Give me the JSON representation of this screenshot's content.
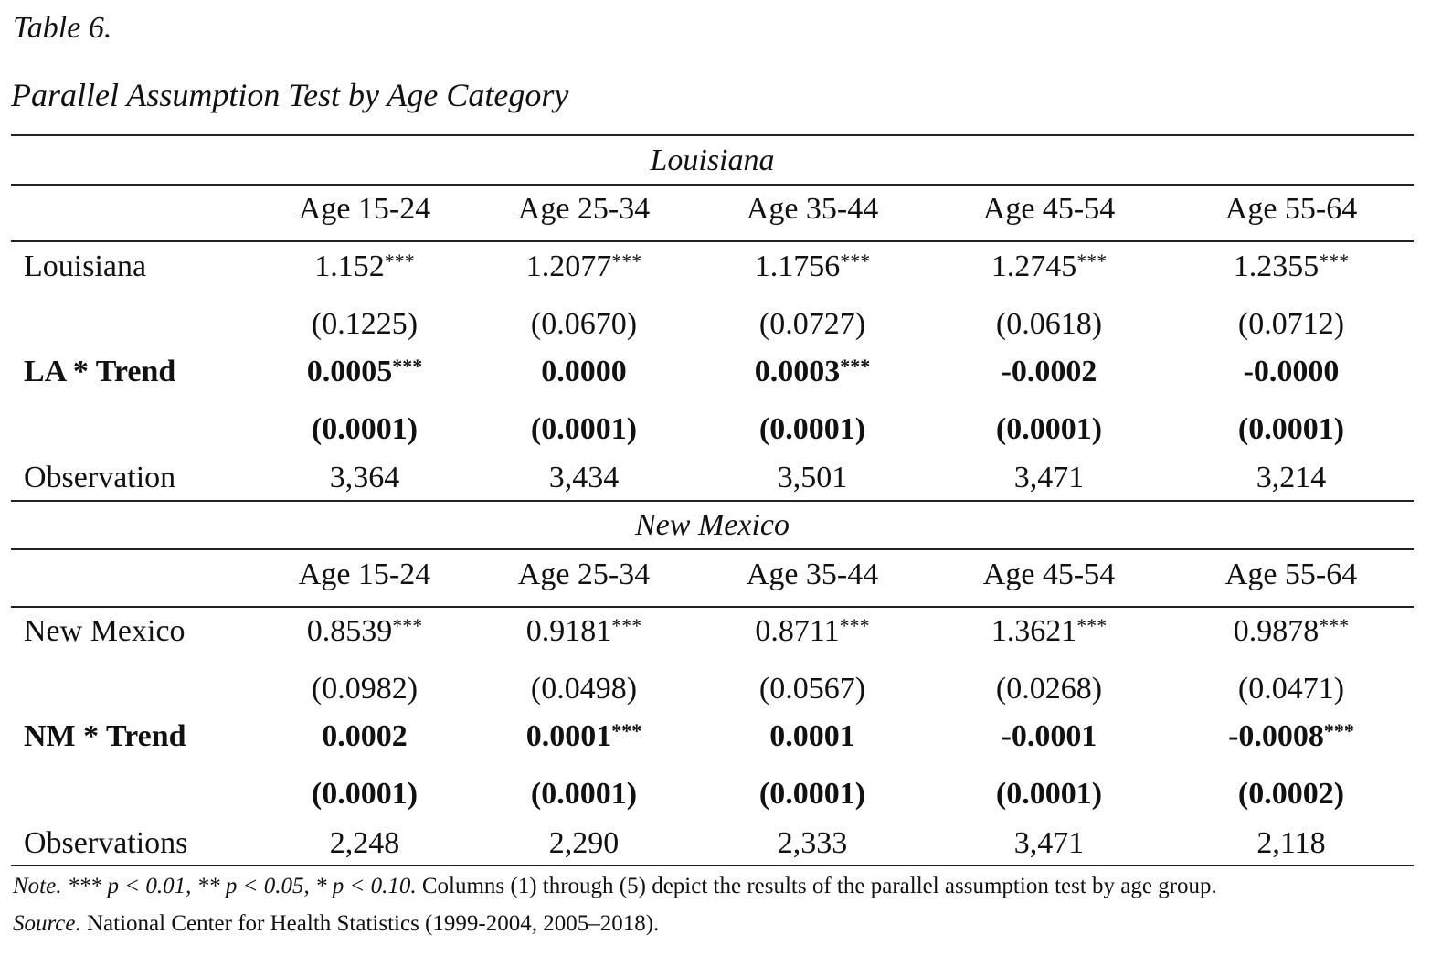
{
  "table_number": "Table 6.",
  "table_title": "Parallel Assumption Test by Age Category",
  "sections": [
    {
      "title": "Louisiana",
      "columns": [
        "Age 15-24",
        "Age 25-34",
        "Age 35-44",
        "Age 45-54",
        "Age 55-64"
      ],
      "rows": [
        {
          "label": "Louisiana",
          "bold": false,
          "values": [
            "1.152",
            "1.2077",
            "1.1756",
            "1.2745",
            "1.2355"
          ],
          "stars": [
            "***",
            "***",
            "***",
            "***",
            "***"
          ]
        },
        {
          "label": "",
          "bold": false,
          "values": [
            "(0.1225)",
            "(0.0670)",
            "(0.0727)",
            "(0.0618)",
            "(0.0712)"
          ],
          "stars": [
            "",
            "",
            "",
            "",
            ""
          ]
        },
        {
          "label": "LA * Trend",
          "bold": true,
          "values": [
            "0.0005",
            "0.0000",
            "0.0003",
            "-0.0002",
            "-0.0000"
          ],
          "stars": [
            "***",
            "",
            "***",
            "",
            ""
          ]
        },
        {
          "label": "",
          "bold": true,
          "values": [
            "(0.0001)",
            "(0.0001)",
            "(0.0001)",
            "(0.0001)",
            "(0.0001)"
          ],
          "stars": [
            "",
            "",
            "",
            "",
            ""
          ]
        },
        {
          "label": "Observation",
          "bold": false,
          "values": [
            "3,364",
            "3,434",
            "3,501",
            "3,471",
            "3,214"
          ],
          "stars": [
            "",
            "",
            "",
            "",
            ""
          ]
        }
      ]
    },
    {
      "title": "New Mexico",
      "columns": [
        "Age 15-24",
        "Age 25-34",
        "Age 35-44",
        "Age 45-54",
        "Age 55-64"
      ],
      "rows": [
        {
          "label": "New Mexico",
          "bold": false,
          "values": [
            "0.8539",
            "0.9181",
            "0.8711",
            "1.3621",
            "0.9878"
          ],
          "stars": [
            "***",
            "***",
            "***",
            "***",
            "***"
          ]
        },
        {
          "label": "",
          "bold": false,
          "values": [
            "(0.0982)",
            "(0.0498)",
            "(0.0567)",
            "(0.0268)",
            "(0.0471)"
          ],
          "stars": [
            "",
            "",
            "",
            "",
            ""
          ]
        },
        {
          "label": "NM * Trend",
          "bold": true,
          "values": [
            "0.0002",
            "0.0001",
            "0.0001",
            "-0.0001",
            "-0.0008"
          ],
          "stars": [
            "",
            "***",
            "",
            "",
            "***"
          ]
        },
        {
          "label": "",
          "bold": true,
          "values": [
            "(0.0001)",
            "(0.0001)",
            "(0.0001)",
            "(0.0001)",
            "(0.0002)"
          ],
          "stars": [
            "",
            "",
            "",
            "",
            ""
          ]
        },
        {
          "label": "Observations",
          "bold": false,
          "values": [
            "2,248",
            "2,290",
            "2,333",
            "3,471",
            "2,118"
          ],
          "stars": [
            "",
            "",
            "",
            "",
            ""
          ]
        }
      ]
    }
  ],
  "note": {
    "label": "Note.",
    "significance": "*** p < 0.01, ** p < 0.05, * p < 0.10.",
    "text": "Columns (1) through (5) depict the results of the parallel assumption test by age group."
  },
  "source": {
    "label": "Source.",
    "text": "National Center for Health Statistics (1999-2004, 2005–2018)."
  }
}
